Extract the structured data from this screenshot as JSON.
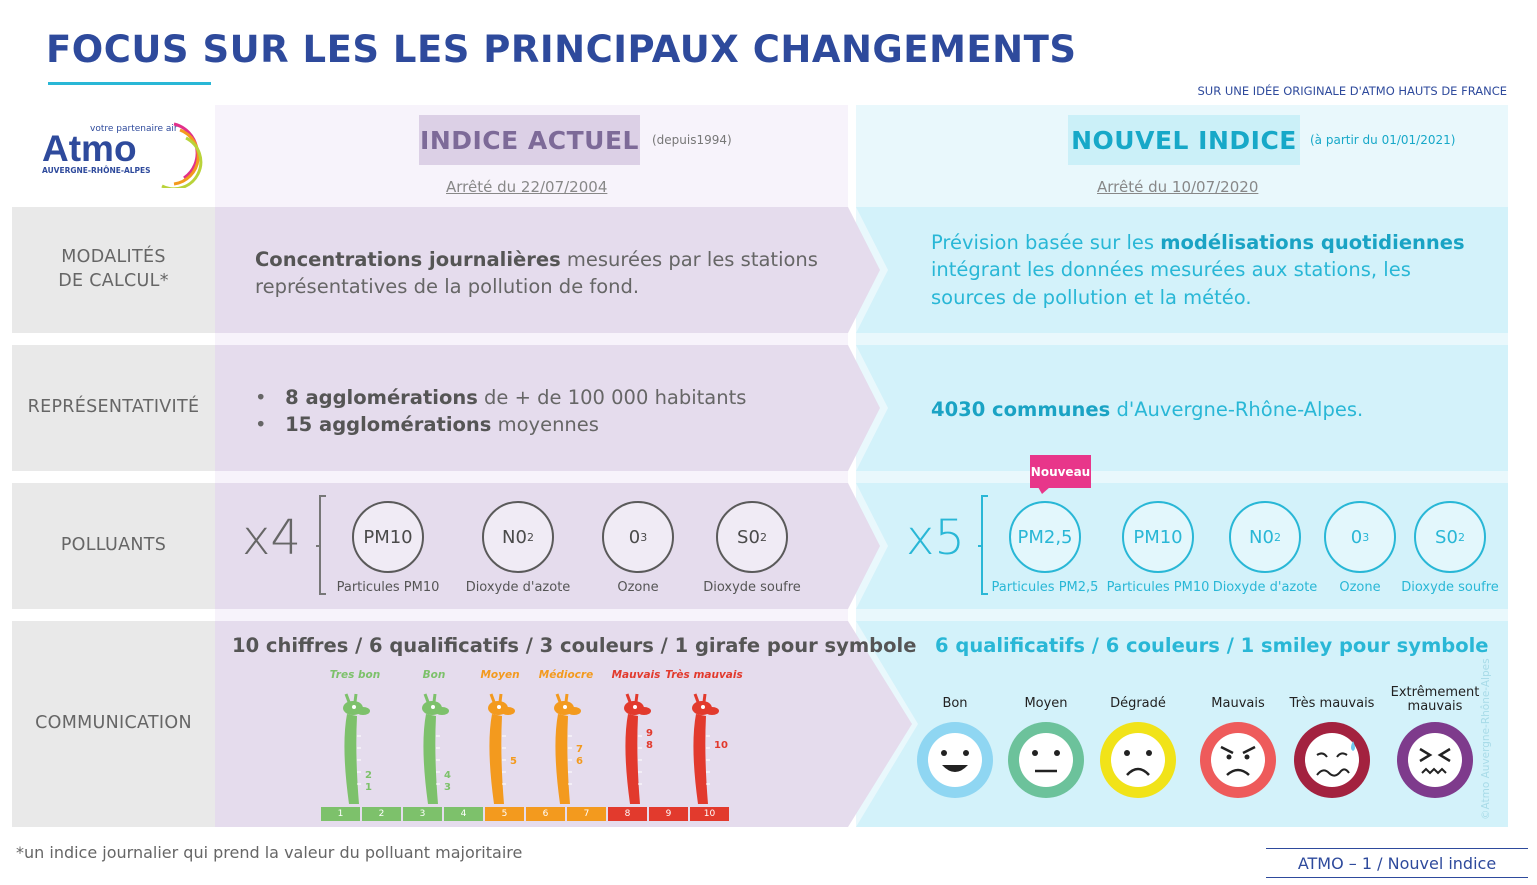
{
  "header": {
    "title": "FOCUS SUR LES LES PRINCIPAUX CHANGEMENTS",
    "credit": "SUR UNE IDÉE ORIGINALE D'ATMO HAUTS DE FRANCE"
  },
  "logo": {
    "tagline": "votre partenaire air",
    "name": "Atmo",
    "region": "AUVERGNE-RHÔNE-ALPES"
  },
  "columns": {
    "old": {
      "label": "INDICE ACTUEL",
      "since": "(depuis1994)",
      "decree": "Arrêté du 22/07/2004"
    },
    "new": {
      "label": "NOUVEL INDICE",
      "since": "(à partir du 01/01/2021)",
      "decree": "Arrêté du 10/07/2020"
    }
  },
  "rows": {
    "calcul": {
      "label_line1": "MODALITÉS",
      "label_line2": "DE CALCUL*",
      "old_bold": "Concentrations journalières",
      "old_text1": " mesurées par les stations",
      "old_text2": "représentatives de la pollution de fond.",
      "new_text1": "Prévision basée sur les ",
      "new_bold": "modélisations quotidiennes",
      "new_text2": "intégrant les données mesurées aux stations, les",
      "new_text3": "sources de pollution et la météo."
    },
    "representativite": {
      "label": "REPRÉSENTATIVITÉ",
      "old_bullets": [
        {
          "bold": "8 agglomérations",
          "text": " de + de 100 000 habitants"
        },
        {
          "bold": "15 agglomérations",
          "text": " moyennes"
        }
      ],
      "new_bold": "4030 communes",
      "new_text": " d'Auvergne-Rhône-Alpes."
    },
    "polluants": {
      "label": "POLLUANTS",
      "old_mult": "x4",
      "new_mult": "x5",
      "new_tag": "Nouveau",
      "old_items": [
        {
          "symbol": "PM10",
          "sub": "",
          "name": "Particules PM10"
        },
        {
          "symbol": "N0",
          "sub": "2",
          "name": "Dioxyde d'azote"
        },
        {
          "symbol": "0",
          "sub": "3",
          "name": "Ozone"
        },
        {
          "symbol": "S0",
          "sub": "2",
          "name": "Dioxyde soufre"
        }
      ],
      "new_items": [
        {
          "symbol": "PM2,5",
          "sub": "",
          "name": "Particules PM2,5"
        },
        {
          "symbol": "PM10",
          "sub": "",
          "name": "Particules PM10"
        },
        {
          "symbol": "N0",
          "sub": "2",
          "name": "Dioxyde d'azote"
        },
        {
          "symbol": "0",
          "sub": "3",
          "name": "Ozone"
        },
        {
          "symbol": "S0",
          "sub": "2",
          "name": "Dioxyde soufre"
        }
      ]
    },
    "communication": {
      "label": "COMMUNICATION",
      "old_title": "10 chiffres / 6 qualificatifs / 3 couleurs / 1 girafe pour symbole",
      "new_title": "6 qualificatifs / 6 couleurs / 1 smiley pour symbole",
      "giraffes": [
        {
          "label": "Tres bon",
          "color": "#7dc16b",
          "nums": [
            "2",
            "1"
          ]
        },
        {
          "label": "Bon",
          "color": "#7dc16b",
          "nums": [
            "4",
            "3"
          ]
        },
        {
          "label": "Moyen",
          "color": "#f39a1e",
          "nums": [
            "5"
          ]
        },
        {
          "label": "Médiocre",
          "color": "#f39a1e",
          "nums": [
            "7",
            "6"
          ]
        },
        {
          "label": "Mauvais",
          "color": "#e23a2d",
          "nums": [
            "9",
            "8"
          ]
        },
        {
          "label": "Très mauvais",
          "color": "#e23a2d",
          "nums": [
            "10"
          ]
        }
      ],
      "scale": [
        "1",
        "2",
        "3",
        "4",
        "5",
        "6",
        "7",
        "8",
        "9",
        "10"
      ],
      "scale_colors": [
        "#7dc16b",
        "#7dc16b",
        "#7dc16b",
        "#7dc16b",
        "#f39a1e",
        "#f39a1e",
        "#f39a1e",
        "#e23a2d",
        "#e23a2d",
        "#e23a2d"
      ],
      "smileys": [
        {
          "label": "Bon",
          "color": "#8fd6f2",
          "face": "happy"
        },
        {
          "label": "Moyen",
          "color": "#6cc29b",
          "face": "neutral"
        },
        {
          "label": "Dégradé",
          "color": "#f1e319",
          "face": "sad"
        },
        {
          "label": "Mauvais",
          "color": "#ee5b5b",
          "face": "angry"
        },
        {
          "label": "Très mauvais",
          "color": "#a3223f",
          "face": "sweat"
        },
        {
          "label": "Extrêmement mauvais",
          "color": "#7e3b8c",
          "face": "disgust"
        }
      ]
    }
  },
  "footer": {
    "footnote": "*un indice journalier qui prend la valeur du polluant majoritaire",
    "page_ref": "ATMO – 1 / Nouvel indice",
    "copyright": "©Atmo Auvergne-Rhône-Alpes"
  }
}
